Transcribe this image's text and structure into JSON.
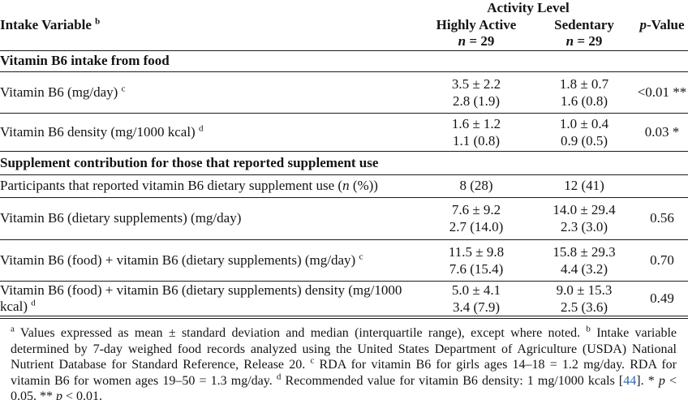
{
  "table": {
    "header": {
      "intake_variable": "Intake Variable",
      "intake_variable_sup": "b",
      "activity_level": "Activity Level",
      "highly_active": "Highly Active",
      "sedentary": "Sedentary",
      "n_italic": "n",
      "n_suffix": " = 29",
      "p_italic": "p",
      "p_suffix": "-Value"
    },
    "sections": {
      "food": "Vitamin B6 intake from food",
      "supplement": "Supplement contribution for those that reported supplement use"
    },
    "rows": {
      "b6_food": {
        "label": "Vitamin B6 (mg/day)",
        "sup": "c",
        "ha_mean": "3.5 ± 2.2",
        "ha_median": "2.8 (1.9)",
        "sed_mean": "1.8 ± 0.7",
        "sed_median": "1.6 (0.8)",
        "p": "<0.01 **"
      },
      "b6_density": {
        "label": "Vitamin B6 density (mg/1000 kcal)",
        "sup": "d",
        "ha_mean": "1.6 ± 1.2",
        "ha_median": "1.1 (0.8)",
        "sed_mean": "1.0 ± 0.4",
        "sed_median": "0.9 (0.5)",
        "p": "0.03 *"
      },
      "participants": {
        "label_pre": "Participants that reported vitamin B6 dietary supplement use (",
        "label_italic": "n",
        "label_post": " (%))",
        "ha": "8 (28)",
        "sed": "12 (41)",
        "p": ""
      },
      "b6_supplements": {
        "label": "Vitamin B6 (dietary supplements) (mg/day)",
        "ha_mean": "7.6 ± 9.2",
        "ha_median": "2.7 (14.0)",
        "sed_mean": "14.0 ± 29.4",
        "sed_median": "2.3 (3.0)",
        "p": "0.56"
      },
      "b6_food_plus_supp": {
        "label": "Vitamin B6 (food) + vitamin B6 (dietary supplements) (mg/day)",
        "sup": "c",
        "ha_mean": "11.5 ± 9.8",
        "ha_median": "7.6 (15.4)",
        "sed_mean": "15.8 ± 29.3",
        "sed_median": "4.4 (3.2)",
        "p": "0.70"
      },
      "b6_food_plus_supp_density": {
        "label": "Vitamin B6 (food) + vitamin B6 (dietary supplements) density (mg/1000 kcal)",
        "sup": "d",
        "ha_mean": "5.0 ± 4.1",
        "ha_median": "3.4 (7.9)",
        "sed_mean": "9.0 ± 15.3",
        "sed_median": "2.5 (3.6)",
        "p": "0.49"
      }
    }
  },
  "footnotes": {
    "sup_a": "a",
    "seg_a": " Values expressed as mean ± standard deviation and median (interquartile range), except where noted. ",
    "sup_b": "b",
    "seg_b": " Intake variable determined by 7-day weighed food records analyzed using the United States Department of Agriculture (USDA) National Nutrient Database for Standard Reference, Release 20. ",
    "sup_c": "c",
    "seg_c": " RDA for vitamin B6 for girls ages 14–18 = 1.2 mg/day. RDA for vitamin B6 for women ages 19–50 = 1.3 mg/day. ",
    "sup_d": "d",
    "seg_d": " Recommended value for vitamin B6 density: 1 mg/1000 kcals [",
    "cite": "44",
    "seg_e": "]. * ",
    "p1": "p",
    "seg_f": " < 0.05. ** ",
    "p2": "p",
    "seg_g": " < 0.01."
  },
  "colors": {
    "text": "#141414",
    "rule": "#1c1c1c",
    "link_blue": "#2b65b0"
  }
}
